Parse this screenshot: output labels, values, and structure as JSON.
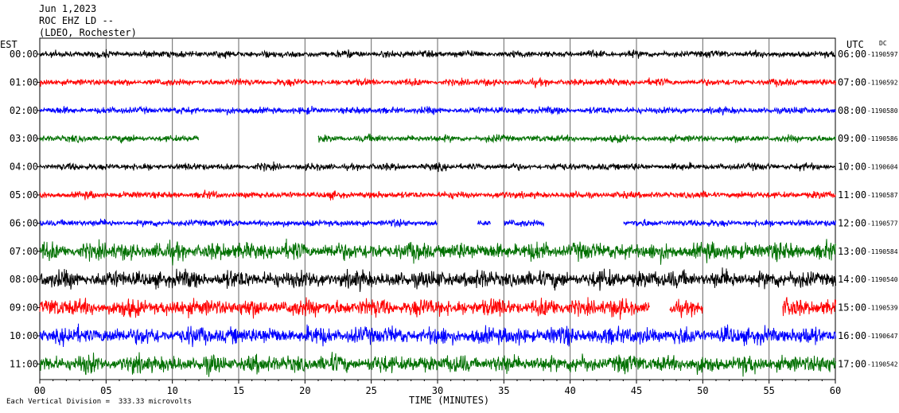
{
  "header": {
    "date": "Jun 1,2023",
    "station": "ROC EHZ LD --",
    "network": "(LDEO, Rochester)"
  },
  "left_axis_label": "EST",
  "right_axis_label": "UTC",
  "dc_label": "DC",
  "footer_note": "Each Vertical Division =  333.33 microvolts",
  "chart_data": {
    "type": "line",
    "xlabel": "TIME (MINUTES)",
    "xlim": [
      0,
      60
    ],
    "x_ticks": [
      "00",
      "05",
      "10",
      "15",
      "20",
      "25",
      "30",
      "35",
      "40",
      "45",
      "50",
      "55",
      "60"
    ],
    "colors": [
      "#000000",
      "#ff0000",
      "#0000ff",
      "#007000"
    ],
    "rows": [
      {
        "est": "00:00",
        "utc": "06:00",
        "dc": "-1190597",
        "color": "#000000",
        "gaps": []
      },
      {
        "est": "01:00",
        "utc": "07:00",
        "dc": "-1190592",
        "color": "#ff0000",
        "gaps": []
      },
      {
        "est": "02:00",
        "utc": "08:00",
        "dc": "-1190580",
        "color": "#0000ff",
        "gaps": []
      },
      {
        "est": "03:00",
        "utc": "09:00",
        "dc": "-1190586",
        "color": "#007000",
        "gaps": [
          [
            12,
            21
          ]
        ]
      },
      {
        "est": "04:00",
        "utc": "10:00",
        "dc": "-1190604",
        "color": "#000000",
        "gaps": []
      },
      {
        "est": "05:00",
        "utc": "11:00",
        "dc": "-1190587",
        "color": "#ff0000",
        "gaps": []
      },
      {
        "est": "06:00",
        "utc": "12:00",
        "dc": "-1190577",
        "color": "#0000ff",
        "gaps": [
          [
            30,
            33
          ],
          [
            34,
            35
          ],
          [
            38,
            44
          ]
        ]
      },
      {
        "est": "07:00",
        "utc": "13:00",
        "dc": "-1190584",
        "color": "#007000",
        "gaps": []
      },
      {
        "est": "08:00",
        "utc": "14:00",
        "dc": "-1190540",
        "color": "#000000",
        "gaps": []
      },
      {
        "est": "09:00",
        "utc": "15:00",
        "dc": "-1190539",
        "color": "#ff0000",
        "gaps": [
          [
            46,
            47.5
          ],
          [
            50,
            56
          ]
        ]
      },
      {
        "est": "10:00",
        "utc": "16:00",
        "dc": "-1190647",
        "color": "#0000ff",
        "gaps": []
      },
      {
        "est": "11:00",
        "utc": "17:00",
        "dc": "-1190542",
        "color": "#007000",
        "gaps": []
      }
    ]
  }
}
